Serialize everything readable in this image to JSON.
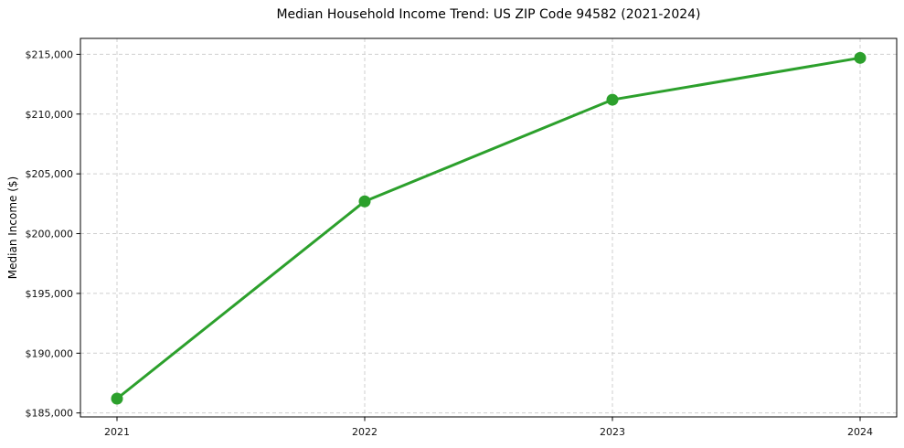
{
  "chart_data": {
    "type": "line",
    "title": "Median Household Income Trend: US ZIP Code 94582 (2021-2024)",
    "xlabel": "",
    "ylabel": "Median Income ($)",
    "categories": [
      "2021",
      "2022",
      "2023",
      "2024"
    ],
    "series": [
      {
        "values": [
          186200,
          202700,
          211200,
          214700
        ],
        "color": "#2ca02c",
        "marker": "circle"
      }
    ],
    "yticks": [
      185000,
      190000,
      195000,
      200000,
      205000,
      210000,
      215000
    ],
    "ytick_labels": [
      "$185,000",
      "$190,000",
      "$195,000",
      "$200,000",
      "$205,000",
      "$210,000",
      "$215,000"
    ],
    "ylim": [
      184670,
      216330
    ],
    "grid": true,
    "grid_style": "dashed",
    "legend_position": "none"
  },
  "colors": {
    "line": "#2ca02c",
    "grid": "#cfcfcf",
    "spine": "#000000",
    "tick_text": "#111111",
    "background": "#ffffff"
  }
}
